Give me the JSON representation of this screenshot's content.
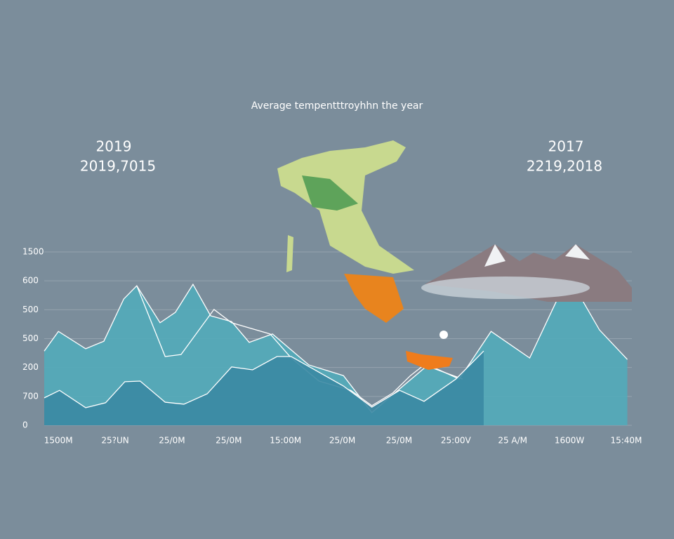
{
  "chart_data": {
    "type": "area",
    "title": "Average tempentttroyhhn the year",
    "annotations": [
      "2019",
      "2019,7015",
      "2017",
      "2219,2018"
    ],
    "xlim": [
      -0.25,
      10.1
    ],
    "ylim": [
      0,
      6
    ],
    "xticks": [
      {
        "value": 0,
        "label": "1500M"
      },
      {
        "value": 1,
        "label": "25?UN"
      },
      {
        "value": 2,
        "label": "25/0M"
      },
      {
        "value": 3,
        "label": "25/0M"
      },
      {
        "value": 4,
        "label": "15:00M"
      },
      {
        "value": 5,
        "label": "25/0M"
      },
      {
        "value": 6,
        "label": "25/0M"
      },
      {
        "value": 7,
        "label": "25:00V"
      },
      {
        "value": 8,
        "label": "25 A/M"
      },
      {
        "value": 9,
        "label": "1600W"
      },
      {
        "value": 10,
        "label": "15:40M"
      }
    ],
    "yticks": [
      {
        "value": 0,
        "label": "0"
      },
      {
        "value": 1,
        "label": "700"
      },
      {
        "value": 2,
        "label": "200"
      },
      {
        "value": 3,
        "label": "500"
      },
      {
        "value": 4,
        "label": "500"
      },
      {
        "value": 5,
        "label": "600"
      },
      {
        "value": 6,
        "label": "1500"
      }
    ],
    "grid": true,
    "series": [
      {
        "color": "#52abba",
        "fill": true,
        "x": [
          -0.25,
          0,
          0.48,
          0.8,
          1.15,
          1.38,
          1.79,
          2.06,
          2.37,
          2.68,
          3.05,
          3.36,
          3.77,
          4.41,
          5.02,
          5.52,
          6.07,
          6.51,
          7.06,
          7.62,
          8.3,
          8.98,
          9.53,
          10.02
        ],
        "values": [
          2.57,
          3.25,
          2.65,
          2.91,
          4.37,
          4.83,
          3.55,
          3.91,
          4.88,
          3.79,
          3.59,
          2.87,
          3.16,
          2.09,
          1.72,
          0.44,
          1.36,
          2.09,
          1.6,
          3.25,
          2.33,
          5.17,
          3.3,
          2.28
        ]
      },
      {
        "color": "#ffffff",
        "fill": false,
        "x": [
          1.38,
          1.88,
          2.16,
          2.74,
          3.05,
          3.73,
          4.1,
          4.59,
          5.15,
          5.52,
          5.89,
          6.2,
          6.44,
          7.12
        ],
        "values": [
          4.83,
          2.38,
          2.45,
          4.01,
          3.55,
          3.16,
          2.33,
          1.53,
          1.21,
          0.68,
          1.12,
          1.72,
          2.09,
          1.6
        ]
      },
      {
        "color": "#3b88a3",
        "fill": true,
        "x": [
          -0.25,
          0.02,
          0.48,
          0.83,
          1.17,
          1.44,
          1.88,
          2.21,
          2.62,
          3.05,
          3.42,
          3.85,
          4.1,
          4.47,
          5.02,
          5.52,
          6.01,
          6.44,
          7.0,
          7.49
        ],
        "values": [
          0.95,
          1.21,
          0.61,
          0.78,
          1.51,
          1.53,
          0.8,
          0.73,
          1.09,
          2.02,
          1.92,
          2.38,
          2.38,
          1.97,
          1.36,
          0.63,
          1.21,
          0.83,
          1.6,
          2.57
        ]
      }
    ]
  }
}
